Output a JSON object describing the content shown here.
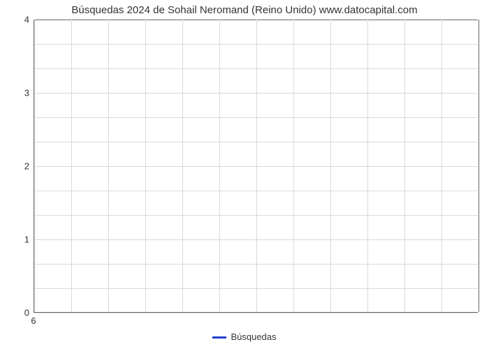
{
  "chart": {
    "type": "line",
    "title": "Búsquedas 2024 de Sohail Neromand (Reino Unido) www.datocapital.com",
    "title_fontsize": 15,
    "title_color": "#333333",
    "background_color": "#ffffff",
    "plot_border_color": "#666666",
    "grid_color": "#d9d9d9",
    "y": {
      "min": 0,
      "max": 4,
      "major_ticks": [
        0,
        1,
        2,
        3,
        4
      ],
      "minor_divisions_per_major": 3
    },
    "x": {
      "ticks": [
        6
      ],
      "columns": 12
    },
    "series": [],
    "legend": {
      "label": "Búsquedas",
      "color": "#2040d0",
      "swatch_height": 3,
      "text_color": "#333333",
      "fontsize": 13
    }
  }
}
